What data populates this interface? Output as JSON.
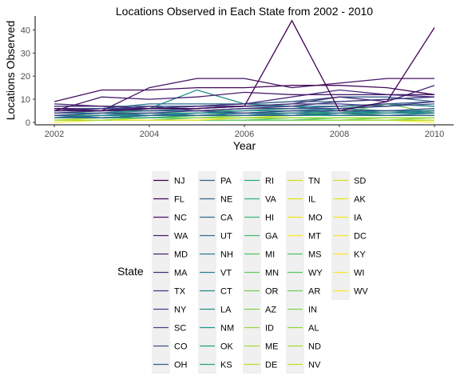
{
  "chart_data": {
    "type": "line",
    "title": "Locations Observed in Each State from 2002 - 2010",
    "xlabel": "Year",
    "ylabel": "Locations Observed",
    "x": [
      2002,
      2003,
      2004,
      2005,
      2006,
      2007,
      2008,
      2009,
      2010
    ],
    "xlim": [
      2002,
      2010
    ],
    "ylim": [
      0,
      45
    ],
    "xticks": [
      2002,
      2004,
      2006,
      2008,
      2010
    ],
    "yticks": [
      0,
      10,
      20,
      30,
      40
    ],
    "grid": false,
    "legend": {
      "title": "State",
      "placement": "bottom",
      "columns": 5
    },
    "series": [
      {
        "name": "NJ",
        "color": "#440154",
        "values": [
          6,
          5,
          6,
          6,
          7,
          44,
          5,
          9,
          41
        ]
      },
      {
        "name": "FL",
        "color": "#450a5c",
        "values": [
          9,
          14,
          14,
          15,
          15,
          16,
          16,
          15,
          12
        ]
      },
      {
        "name": "NC",
        "color": "#461565",
        "values": [
          5,
          5,
          15,
          19,
          19,
          15,
          17,
          19,
          19
        ]
      },
      {
        "name": "WA",
        "color": "#471e6d",
        "values": [
          5,
          11,
          10,
          11,
          13,
          12,
          12,
          12,
          12
        ]
      },
      {
        "name": "MD",
        "color": "#472674",
        "values": [
          8,
          7,
          6,
          6,
          7,
          8,
          11,
          9,
          16
        ]
      },
      {
        "name": "MA",
        "color": "#462f7b",
        "values": [
          7,
          7,
          6,
          7,
          8,
          11,
          14,
          12,
          11
        ]
      },
      {
        "name": "TX",
        "color": "#443781",
        "values": [
          4,
          5,
          7,
          5,
          6,
          7,
          9,
          10,
          11
        ]
      },
      {
        "name": "NY",
        "color": "#424086",
        "values": [
          6,
          6,
          6,
          7,
          7,
          8,
          8,
          7,
          9
        ]
      },
      {
        "name": "SC",
        "color": "#3f4789",
        "values": [
          3,
          4,
          4,
          5,
          4,
          5,
          5,
          5,
          6
        ]
      },
      {
        "name": "CO",
        "color": "#3c4f8a",
        "values": [
          5,
          5,
          5,
          5,
          6,
          6,
          6,
          7,
          8
        ]
      },
      {
        "name": "OH",
        "color": "#38578c",
        "values": [
          5,
          6,
          5,
          5,
          6,
          6,
          7,
          8,
          9
        ]
      },
      {
        "name": "PA",
        "color": "#345e8d",
        "values": [
          7,
          7,
          7,
          7,
          8,
          9,
          11,
          11,
          9
        ]
      },
      {
        "name": "NE",
        "color": "#31658e",
        "values": [
          3,
          2,
          3,
          3,
          3,
          3,
          4,
          3,
          3
        ]
      },
      {
        "name": "CA",
        "color": "#2e6c8e",
        "values": [
          5,
          6,
          8,
          8,
          8,
          9,
          9,
          10,
          11
        ]
      },
      {
        "name": "UT",
        "color": "#2b738e",
        "values": [
          2,
          2,
          3,
          3,
          3,
          4,
          3,
          3,
          4
        ]
      },
      {
        "name": "NH",
        "color": "#287a8e",
        "values": [
          2,
          3,
          4,
          3,
          4,
          4,
          5,
          4,
          5
        ]
      },
      {
        "name": "VT",
        "color": "#26818e",
        "values": [
          4,
          4,
          3,
          4,
          5,
          5,
          6,
          5,
          5
        ]
      },
      {
        "name": "CT",
        "color": "#23878e",
        "values": [
          4,
          5,
          5,
          6,
          7,
          7,
          7,
          8,
          7
        ]
      },
      {
        "name": "LA",
        "color": "#218e8d",
        "values": [
          4,
          4,
          6,
          14,
          8,
          7,
          5,
          5,
          4
        ]
      },
      {
        "name": "NM",
        "color": "#1f958b",
        "values": [
          3,
          3,
          3,
          4,
          4,
          5,
          4,
          4,
          4
        ]
      },
      {
        "name": "OK",
        "color": "#1f9c89",
        "values": [
          2,
          2,
          3,
          3,
          4,
          3,
          4,
          5,
          5
        ]
      },
      {
        "name": "KS",
        "color": "#21a386",
        "values": [
          2,
          2,
          2,
          3,
          3,
          3,
          3,
          3,
          3
        ]
      },
      {
        "name": "RI",
        "color": "#26aa81",
        "values": [
          3,
          4,
          4,
          4,
          4,
          5,
          5,
          5,
          5
        ]
      },
      {
        "name": "VA",
        "color": "#2eb07c",
        "values": [
          4,
          4,
          5,
          5,
          5,
          6,
          6,
          8,
          7
        ]
      },
      {
        "name": "HI",
        "color": "#39b776",
        "values": [
          3,
          3,
          4,
          4,
          4,
          4,
          4,
          5,
          5
        ]
      },
      {
        "name": "GA",
        "color": "#45bd6f",
        "values": [
          3,
          3,
          3,
          4,
          4,
          4,
          4,
          4,
          4
        ]
      },
      {
        "name": "MI",
        "color": "#53c367",
        "values": [
          2,
          3,
          3,
          3,
          3,
          3,
          4,
          4,
          4
        ]
      },
      {
        "name": "MN",
        "color": "#62c95e",
        "values": [
          2,
          2,
          3,
          3,
          3,
          3,
          3,
          4,
          4
        ]
      },
      {
        "name": "OR",
        "color": "#72ce55",
        "values": [
          3,
          3,
          3,
          3,
          4,
          4,
          4,
          8,
          4
        ]
      },
      {
        "name": "AZ",
        "color": "#83d34b",
        "values": [
          2,
          2,
          2,
          2,
          3,
          3,
          3,
          3,
          3
        ]
      },
      {
        "name": "ID",
        "color": "#95d840",
        "values": [
          1,
          1,
          2,
          2,
          2,
          2,
          2,
          2,
          2
        ]
      },
      {
        "name": "ME",
        "color": "#a7db35",
        "values": [
          2,
          2,
          2,
          3,
          3,
          3,
          3,
          3,
          3
        ]
      },
      {
        "name": "DE",
        "color": "#b9de29",
        "values": [
          1,
          2,
          2,
          2,
          2,
          2,
          2,
          2,
          2
        ]
      },
      {
        "name": "TN",
        "color": "#cce11e",
        "values": [
          2,
          2,
          2,
          2,
          2,
          3,
          3,
          3,
          3
        ]
      },
      {
        "name": "IL",
        "color": "#dfe318",
        "values": [
          2,
          2,
          2,
          3,
          3,
          3,
          3,
          3,
          3
        ]
      },
      {
        "name": "MO",
        "color": "#f0e51c",
        "values": [
          1,
          1,
          2,
          2,
          2,
          2,
          2,
          2,
          2
        ]
      },
      {
        "name": "MT",
        "color": "#fde725",
        "values": [
          1,
          1,
          1,
          1,
          2,
          2,
          2,
          2,
          2
        ]
      },
      {
        "name": "MS",
        "color": "#4dc16b",
        "values": [
          1,
          1,
          1,
          2,
          2,
          2,
          2,
          2,
          2
        ]
      },
      {
        "name": "WY",
        "color": "#5ac864",
        "values": [
          1,
          1,
          1,
          1,
          1,
          1,
          2,
          2,
          2
        ]
      },
      {
        "name": "AR",
        "color": "#6ccd5a",
        "values": [
          1,
          1,
          1,
          1,
          1,
          2,
          2,
          2,
          2
        ]
      },
      {
        "name": "IN",
        "color": "#7fd34e",
        "values": [
          1,
          1,
          1,
          1,
          1,
          1,
          1,
          2,
          2
        ]
      },
      {
        "name": "AL",
        "color": "#93d741",
        "values": [
          1,
          1,
          1,
          1,
          1,
          1,
          1,
          1,
          2
        ]
      },
      {
        "name": "ND",
        "color": "#a8db34",
        "values": [
          1,
          1,
          1,
          1,
          1,
          1,
          1,
          1,
          1
        ]
      },
      {
        "name": "NV",
        "color": "#bddf26",
        "values": [
          1,
          1,
          1,
          1,
          1,
          1,
          1,
          1,
          1
        ]
      },
      {
        "name": "SD",
        "color": "#d2e21b",
        "values": [
          1,
          1,
          1,
          1,
          1,
          1,
          1,
          1,
          1
        ]
      },
      {
        "name": "AK",
        "color": "#e5e419",
        "values": [
          1,
          1,
          1,
          1,
          1,
          1,
          1,
          1,
          1
        ]
      },
      {
        "name": "IA",
        "color": "#f1e51d",
        "values": [
          1,
          1,
          1,
          1,
          1,
          1,
          1,
          1,
          1
        ]
      },
      {
        "name": "DC",
        "color": "#f8e621",
        "values": [
          1,
          1,
          1,
          1,
          1,
          1,
          1,
          1,
          1
        ]
      },
      {
        "name": "KY",
        "color": "#fbe723",
        "values": [
          1,
          1,
          1,
          1,
          1,
          1,
          1,
          1,
          1
        ]
      },
      {
        "name": "WI",
        "color": "#fde725",
        "values": [
          0,
          1,
          1,
          1,
          1,
          1,
          1,
          1,
          1
        ]
      },
      {
        "name": "WV",
        "color": "#fde725",
        "values": [
          1,
          1,
          1,
          1,
          1,
          1,
          1,
          1,
          0
        ]
      }
    ]
  }
}
